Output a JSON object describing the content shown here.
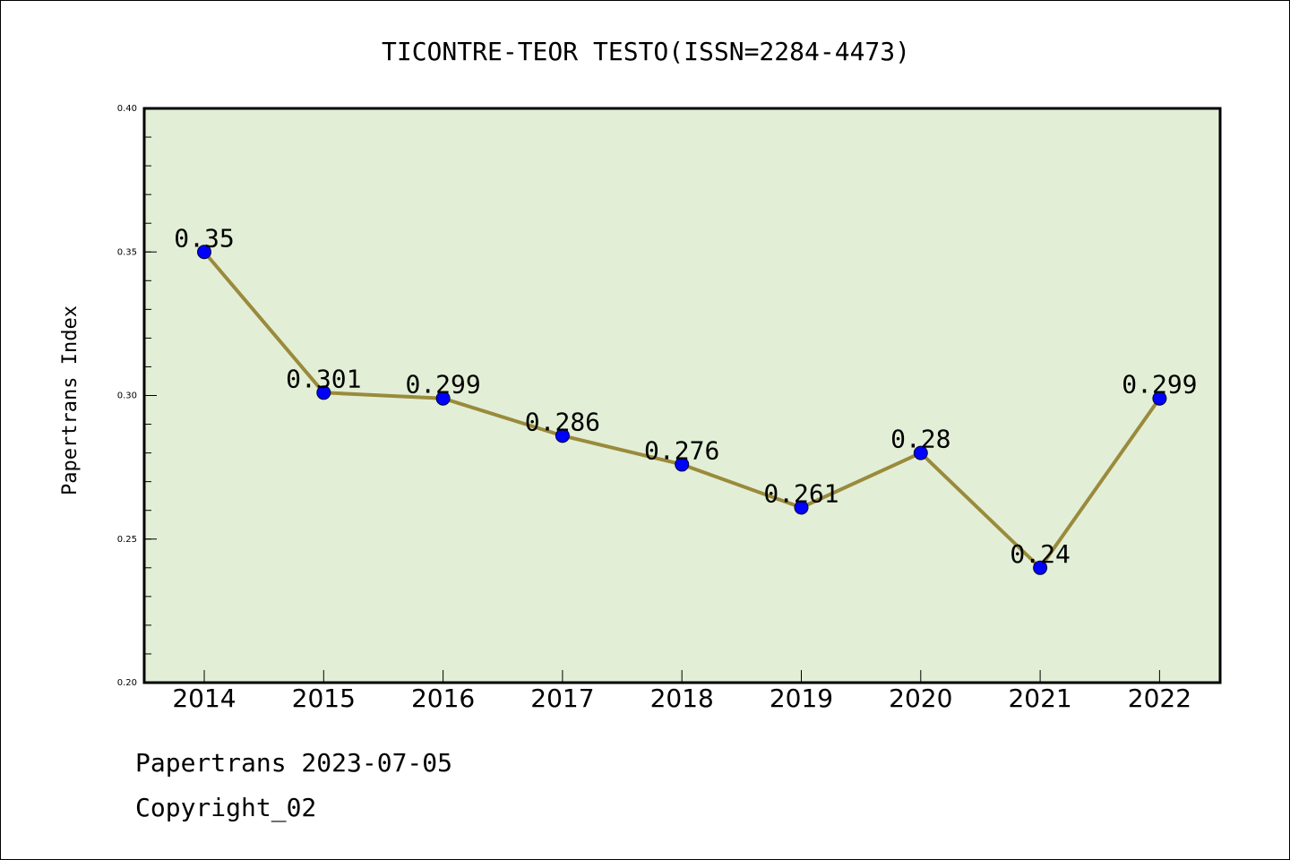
{
  "chart_data": {
    "type": "line",
    "title": "TICONTRE-TEOR TESTO(ISSN=2284-4473)",
    "xlabel": "",
    "ylabel": "Papertrans Index",
    "categories": [
      "2014",
      "2015",
      "2016",
      "2017",
      "2018",
      "2019",
      "2020",
      "2021",
      "2022"
    ],
    "series": [
      {
        "values": [
          0.35,
          0.301,
          0.299,
          0.286,
          0.276,
          0.261,
          0.28,
          0.24,
          0.299
        ]
      }
    ],
    "data_labels": [
      "0.35",
      "0.301",
      "0.299",
      "0.286",
      "0.276",
      "0.261",
      "0.28",
      "0.24",
      "0.299"
    ],
    "ylim": [
      0.2,
      0.4
    ],
    "yticks": [
      "0.20",
      "0.25",
      "0.30",
      "0.35",
      "0.40"
    ],
    "grid": false,
    "colors": {
      "plot_background": "#e2efd6",
      "line": "#9a8a3c",
      "marker": "#0000ff",
      "axis": "#000000"
    }
  },
  "footer": {
    "date_line": "Papertrans 2023-07-05",
    "copyright_line": "Copyright_02"
  }
}
